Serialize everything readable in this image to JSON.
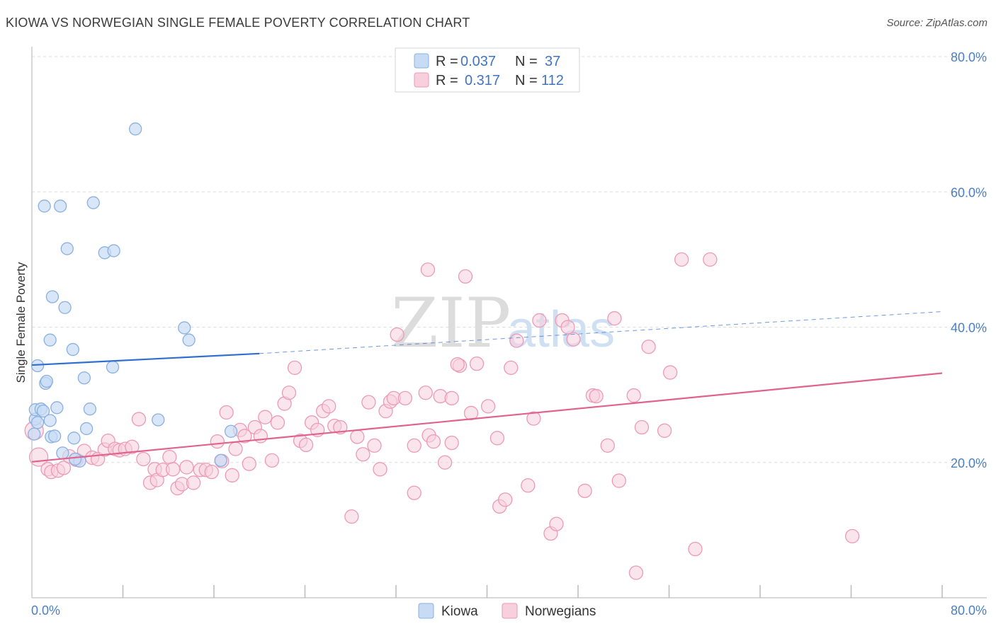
{
  "header": {
    "title": "KIOWA VS NORWEGIAN SINGLE FEMALE POVERTY CORRELATION CHART",
    "source": "Source: ZipAtlas.com"
  },
  "watermark": {
    "zip": "ZIP",
    "atlas": "atlas"
  },
  "colors": {
    "kiowa_fill": "#c7dbf5",
    "kiowa_stroke": "#8ab0e0",
    "kiowa_line": "#2f6fd0",
    "norwegian_fill": "#f8cfdc",
    "norwegian_stroke": "#ec9ab5",
    "norwegian_line": "#e0628f",
    "grid": "#dddddd",
    "axis_label": "#4a7fc7"
  },
  "legend": {
    "rows": [
      {
        "r_label": "R =",
        "r_value": "0.037",
        "n_label": "N =",
        "n_value": "37"
      },
      {
        "r_label": "R =",
        "r_value": "0.317",
        "n_label": "N =",
        "n_value": "112"
      }
    ]
  },
  "chart_data": {
    "type": "scatter",
    "title": "KIOWA VS NORWEGIAN SINGLE FEMALE POVERTY CORRELATION CHART",
    "xlabel": "",
    "ylabel": "Single Female Poverty",
    "xlim": [
      0,
      80
    ],
    "ylim": [
      0,
      80
    ],
    "x_tick_labels": [
      "0.0%",
      "80.0%"
    ],
    "y_ticks": [
      20,
      40,
      60,
      80
    ],
    "y_tick_labels": [
      "20.0%",
      "40.0%",
      "60.0%",
      "80.0%"
    ],
    "grid": true,
    "legend_position": "top-center",
    "series": [
      {
        "name": "Kiowa",
        "r": 0.037,
        "n": 37,
        "trend": {
          "x0": 0,
          "y0": 34.4,
          "x1": 20,
          "y1": 36.1,
          "dash_to_x": 80,
          "dash_to_y": 42.3
        },
        "points": [
          [
            0.2,
            24.2
          ],
          [
            0.3,
            26.4
          ],
          [
            0.3,
            27.8
          ],
          [
            0.5,
            34.3
          ],
          [
            0.8,
            27.9
          ],
          [
            1.0,
            27.6
          ],
          [
            1.2,
            31.7
          ],
          [
            1.3,
            32.0
          ],
          [
            1.6,
            38.1
          ],
          [
            1.6,
            26.2
          ],
          [
            1.7,
            23.8
          ],
          [
            1.8,
            44.5
          ],
          [
            2.0,
            23.9
          ],
          [
            2.2,
            28.1
          ],
          [
            2.7,
            21.4
          ],
          [
            2.9,
            42.9
          ],
          [
            3.1,
            51.6
          ],
          [
            3.6,
            36.7
          ],
          [
            3.7,
            23.6
          ],
          [
            4.2,
            20.2
          ],
          [
            4.6,
            32.5
          ],
          [
            4.8,
            25.0
          ],
          [
            5.1,
            27.9
          ],
          [
            5.4,
            58.4
          ],
          [
            6.4,
            51.0
          ],
          [
            7.1,
            34.1
          ],
          [
            7.2,
            51.3
          ],
          [
            9.1,
            69.3
          ],
          [
            11.1,
            26.3
          ],
          [
            13.4,
            39.9
          ],
          [
            13.8,
            38.1
          ],
          [
            16.6,
            20.3
          ],
          [
            17.5,
            24.6
          ],
          [
            1.1,
            57.9
          ],
          [
            2.5,
            57.9
          ],
          [
            0.5,
            25.9
          ],
          [
            3.8,
            20.5
          ]
        ]
      },
      {
        "name": "Norwegians",
        "r": 0.317,
        "n": 112,
        "trend": {
          "x0": 0,
          "y0": 20.1,
          "x1": 80,
          "y1": 33.2
        },
        "points": [
          [
            0.2,
            24.7
          ],
          [
            0.6,
            20.8
          ],
          [
            1.4,
            19.0
          ],
          [
            1.7,
            18.6
          ],
          [
            2.3,
            18.8
          ],
          [
            2.8,
            19.2
          ],
          [
            3.3,
            20.9
          ],
          [
            3.9,
            20.4
          ],
          [
            4.6,
            21.7
          ],
          [
            5.3,
            20.7
          ],
          [
            5.8,
            20.5
          ],
          [
            6.4,
            21.9
          ],
          [
            6.7,
            23.2
          ],
          [
            7.3,
            22.0
          ],
          [
            7.7,
            21.8
          ],
          [
            8.2,
            22.0
          ],
          [
            8.8,
            22.3
          ],
          [
            9.4,
            26.4
          ],
          [
            9.8,
            20.5
          ],
          [
            10.4,
            17.0
          ],
          [
            10.8,
            19.0
          ],
          [
            11.0,
            17.4
          ],
          [
            11.5,
            18.9
          ],
          [
            12.1,
            20.8
          ],
          [
            12.4,
            19.0
          ],
          [
            12.8,
            16.2
          ],
          [
            13.2,
            16.8
          ],
          [
            13.6,
            19.3
          ],
          [
            14.2,
            17.0
          ],
          [
            14.8,
            18.9
          ],
          [
            15.3,
            18.9
          ],
          [
            15.8,
            18.6
          ],
          [
            16.3,
            23.1
          ],
          [
            16.7,
            20.2
          ],
          [
            17.1,
            27.4
          ],
          [
            17.6,
            18.1
          ],
          [
            17.9,
            22.0
          ],
          [
            18.3,
            24.8
          ],
          [
            18.7,
            23.9
          ],
          [
            19.1,
            19.8
          ],
          [
            19.6,
            25.2
          ],
          [
            20.1,
            23.9
          ],
          [
            20.5,
            26.7
          ],
          [
            21.1,
            20.3
          ],
          [
            21.6,
            25.9
          ],
          [
            22.2,
            28.7
          ],
          [
            22.6,
            30.3
          ],
          [
            23.1,
            34.0
          ],
          [
            23.6,
            23.2
          ],
          [
            24.1,
            22.6
          ],
          [
            24.6,
            25.9
          ],
          [
            25.1,
            24.8
          ],
          [
            25.6,
            27.6
          ],
          [
            26.1,
            28.3
          ],
          [
            26.6,
            25.4
          ],
          [
            27.1,
            25.2
          ],
          [
            28.1,
            12.0
          ],
          [
            28.6,
            23.8
          ],
          [
            29.1,
            21.2
          ],
          [
            29.6,
            28.9
          ],
          [
            30.1,
            22.5
          ],
          [
            30.6,
            19.0
          ],
          [
            31.1,
            27.6
          ],
          [
            31.5,
            29.0
          ],
          [
            31.8,
            29.5
          ],
          [
            32.1,
            38.9
          ],
          [
            32.8,
            29.5
          ],
          [
            33.6,
            15.5
          ],
          [
            33.6,
            22.5
          ],
          [
            34.6,
            30.3
          ],
          [
            34.9,
            24.0
          ],
          [
            34.8,
            48.5
          ],
          [
            35.3,
            23.1
          ],
          [
            35.9,
            29.8
          ],
          [
            36.3,
            20.0
          ],
          [
            36.9,
            22.9
          ],
          [
            37.6,
            34.3
          ],
          [
            38.1,
            47.5
          ],
          [
            38.6,
            27.3
          ],
          [
            39.1,
            34.6
          ],
          [
            40.1,
            28.3
          ],
          [
            40.9,
            23.6
          ],
          [
            41.1,
            13.5
          ],
          [
            41.6,
            14.5
          ],
          [
            42.1,
            34.0
          ],
          [
            42.6,
            38.0
          ],
          [
            43.6,
            16.6
          ],
          [
            44.1,
            26.5
          ],
          [
            44.6,
            41.0
          ],
          [
            45.6,
            9.5
          ],
          [
            46.1,
            10.9
          ],
          [
            46.6,
            41.0
          ],
          [
            47.1,
            40.0
          ],
          [
            47.6,
            38.2
          ],
          [
            48.6,
            15.8
          ],
          [
            49.3,
            29.9
          ],
          [
            49.6,
            29.8
          ],
          [
            50.6,
            22.5
          ],
          [
            51.2,
            41.3
          ],
          [
            51.6,
            17.3
          ],
          [
            53.1,
            3.7
          ],
          [
            53.6,
            25.2
          ],
          [
            54.2,
            37.1
          ],
          [
            55.6,
            24.7
          ],
          [
            56.1,
            33.3
          ],
          [
            57.1,
            50.0
          ],
          [
            58.3,
            7.2
          ],
          [
            59.6,
            50.0
          ],
          [
            72.1,
            9.1
          ],
          [
            37.4,
            34.5
          ],
          [
            36.9,
            29.5
          ],
          [
            52.9,
            29.9
          ]
        ]
      }
    ]
  },
  "bottom_legend": {
    "items": [
      "Kiowa",
      "Norwegians"
    ]
  }
}
